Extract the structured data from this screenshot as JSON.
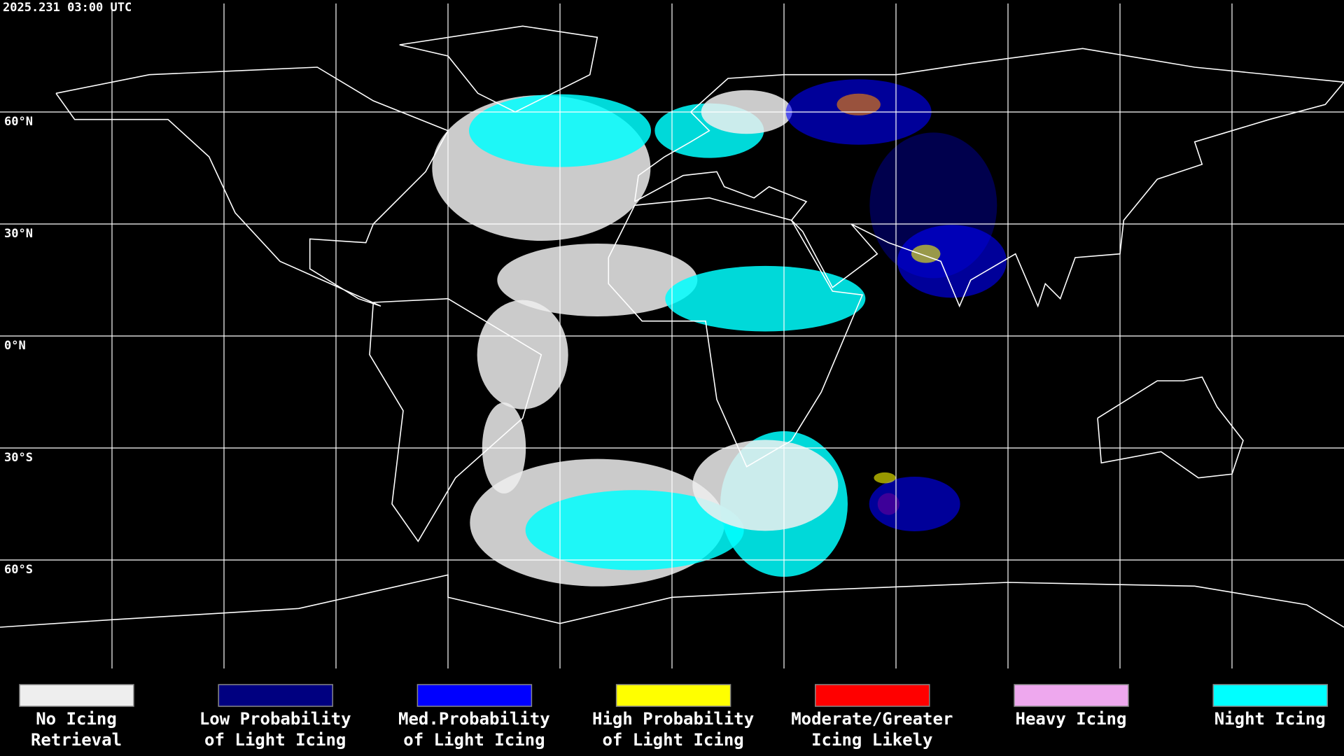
{
  "header": {
    "timestamp": "2025.231 03:00 UTC"
  },
  "latitude_labels": [
    "60°N",
    "30°N",
    "0°N",
    "30°S",
    "60°S"
  ],
  "legend": [
    {
      "lines": [
        "No Icing",
        "Retrieval"
      ],
      "color": "#eeeeee"
    },
    {
      "lines": [
        "Low Probability",
        "of Light Icing"
      ],
      "color": "#000080"
    },
    {
      "lines": [
        "Med.Probability",
        "of Light Icing"
      ],
      "color": "#0000ff"
    },
    {
      "lines": [
        "High Probability",
        "of Light Icing"
      ],
      "color": "#ffff00"
    },
    {
      "lines": [
        "Moderate/Greater",
        "Icing Likely"
      ],
      "color": "#ff0000"
    },
    {
      "lines": [
        "Heavy Icing"
      ],
      "color": "#eea8ee"
    },
    {
      "lines": [
        "Night Icing"
      ],
      "color": "#00ffff"
    }
  ]
}
